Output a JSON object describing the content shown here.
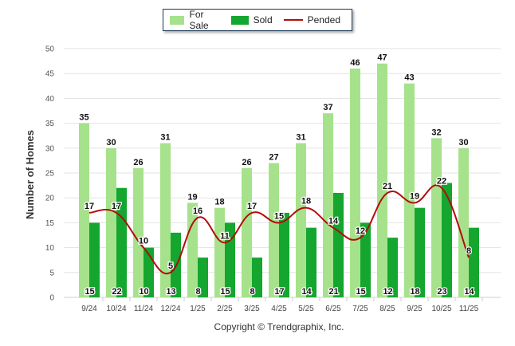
{
  "legend": {
    "for_sale": "For Sale",
    "sold": "Sold",
    "pended": "Pended"
  },
  "copyright": "Copyright © Trendgraphix, Inc.",
  "colors": {
    "for_sale": "#a6e28b",
    "sold": "#14a62e",
    "pended": "#b30c0c",
    "grid": "#e3e3e3"
  },
  "chart_data": {
    "type": "bar",
    "title": "",
    "xlabel": "",
    "ylabel": "Number of Homes",
    "ylim": [
      0,
      50
    ],
    "yticks": [
      0,
      5,
      10,
      15,
      20,
      25,
      30,
      35,
      40,
      45,
      50
    ],
    "categories": [
      "9/24",
      "10/24",
      "11/24",
      "12/24",
      "1/25",
      "2/25",
      "3/25",
      "4/25",
      "5/25",
      "6/25",
      "7/25",
      "8/25",
      "9/25",
      "10/25",
      "11/25"
    ],
    "series": [
      {
        "name": "For Sale",
        "kind": "bar",
        "values": [
          35,
          30,
          26,
          31,
          19,
          18,
          26,
          27,
          31,
          37,
          46,
          47,
          43,
          32,
          30
        ]
      },
      {
        "name": "Sold",
        "kind": "bar",
        "values": [
          15,
          22,
          10,
          13,
          8,
          15,
          8,
          17,
          14,
          21,
          15,
          12,
          18,
          23,
          14
        ]
      },
      {
        "name": "Pended",
        "kind": "line",
        "values": [
          17,
          17,
          10,
          5,
          16,
          11,
          17,
          15,
          18,
          14,
          12,
          21,
          19,
          22,
          8
        ]
      }
    ]
  }
}
